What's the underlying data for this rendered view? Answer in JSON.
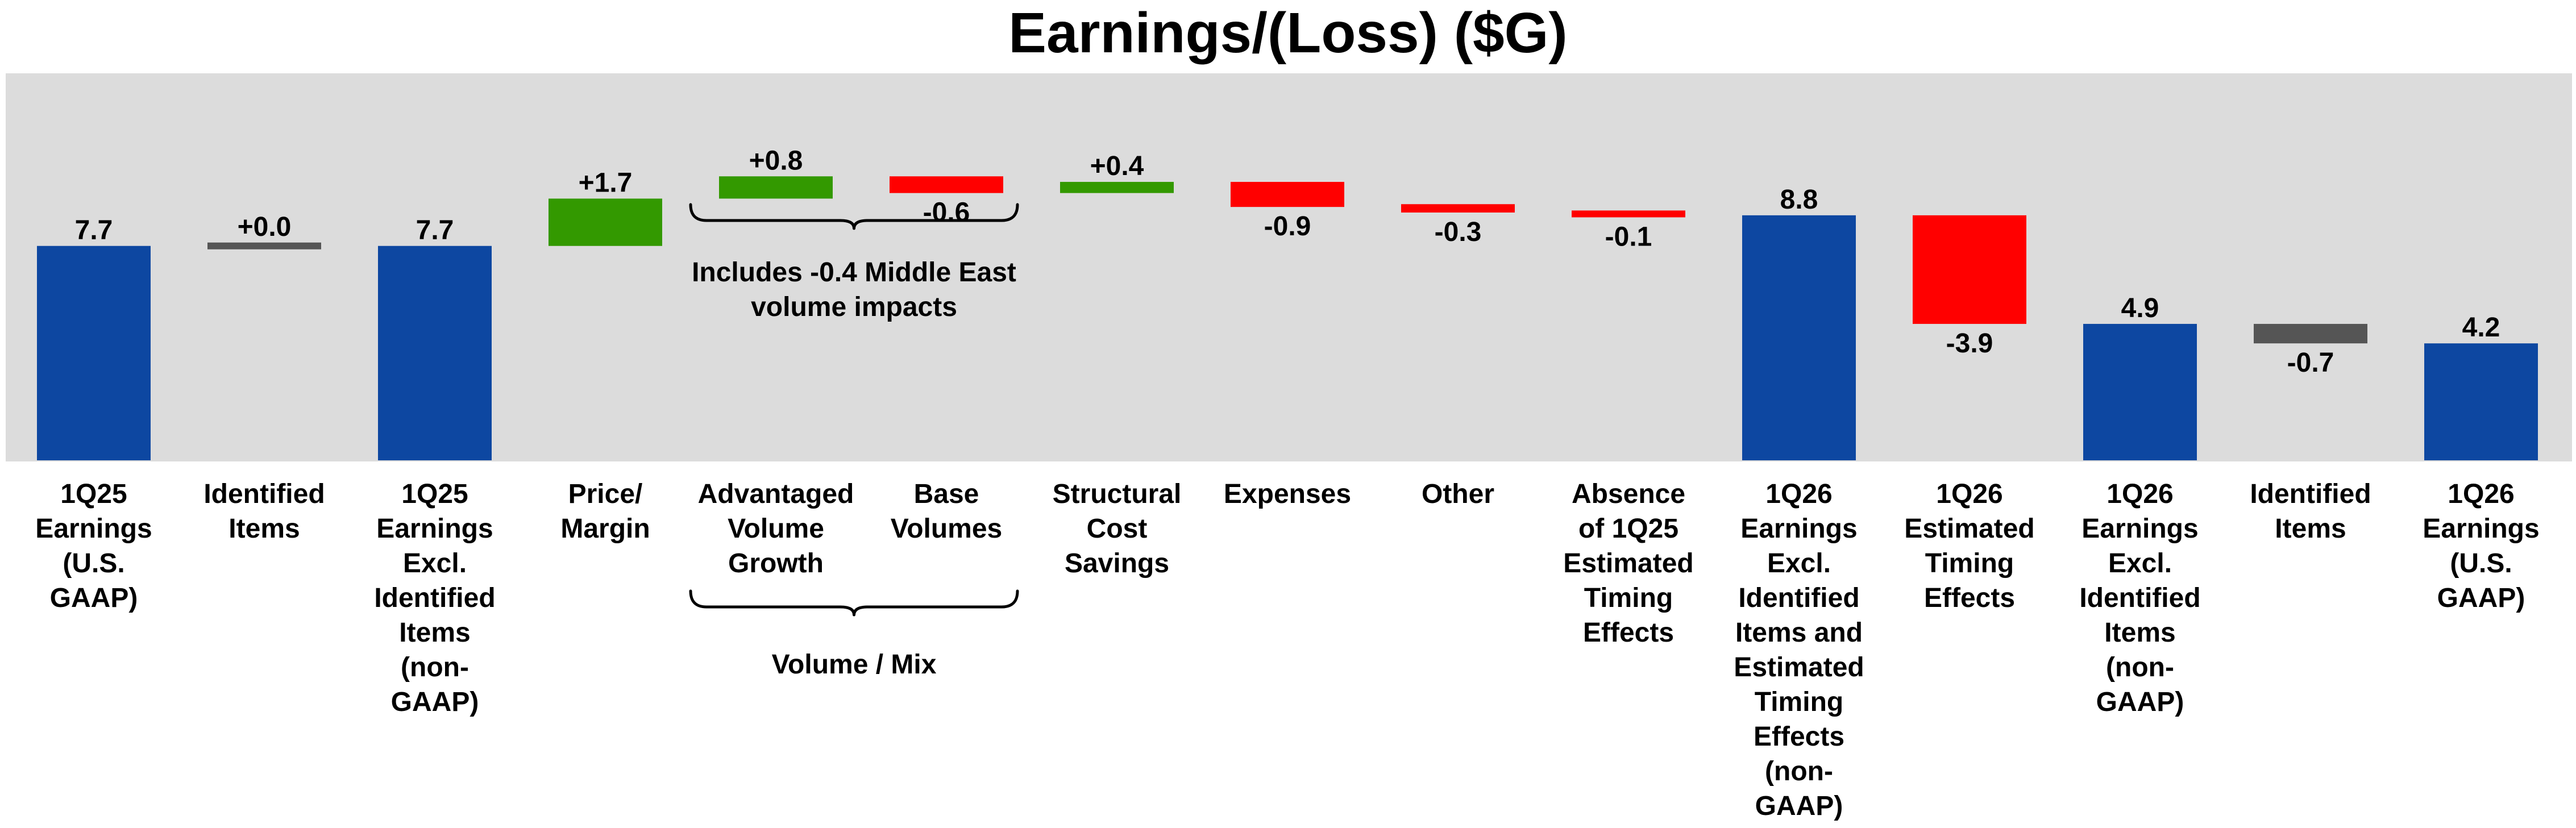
{
  "chart_data": {
    "type": "bar",
    "subtype": "waterfall",
    "title": "Earnings/(Loss) ($G)",
    "colors": {
      "total": "#0D47A1",
      "increase": "#339900",
      "decrease": "#FF0000",
      "identified": "#555555",
      "plot_background": "#DCDCDC"
    },
    "bars": [
      {
        "category": [
          "1Q25",
          "Earnings",
          "(U.S.",
          "GAAP)"
        ],
        "kind": "total",
        "start": 0,
        "end": 7.7,
        "label": "7.7"
      },
      {
        "category": [
          "Identified",
          "Items"
        ],
        "kind": "identified",
        "start": 7.7,
        "end": 7.7,
        "label": "+0.0"
      },
      {
        "category": [
          "1Q25",
          "Earnings",
          "Excl.",
          "Identified",
          "Items",
          "(non-",
          "GAAP)"
        ],
        "kind": "total",
        "start": 0,
        "end": 7.7,
        "label": "7.7"
      },
      {
        "category": [
          "Price/",
          "Margin"
        ],
        "kind": "increase",
        "start": 7.7,
        "end": 9.4,
        "label": "+1.7"
      },
      {
        "category": [
          "Advantaged",
          "Volume",
          "Growth"
        ],
        "kind": "increase",
        "start": 9.4,
        "end": 10.2,
        "label": "+0.8"
      },
      {
        "category": [
          "Base",
          "Volumes"
        ],
        "kind": "decrease",
        "start": 10.2,
        "end": 9.6,
        "label": "-0.6"
      },
      {
        "category": [
          "Structural",
          "Cost",
          "Savings"
        ],
        "kind": "increase",
        "start": 9.6,
        "end": 10.0,
        "label": "+0.4"
      },
      {
        "category": [
          "Expenses"
        ],
        "kind": "decrease",
        "start": 10.0,
        "end": 9.1,
        "label": "-0.9"
      },
      {
        "category": [
          "Other"
        ],
        "kind": "decrease",
        "start": 9.2,
        "end": 8.9,
        "label": "-0.3"
      },
      {
        "category": [
          "Absence",
          "of 1Q25",
          "Estimated",
          "Timing",
          "Effects"
        ],
        "kind": "decrease",
        "start": 8.9,
        "end": 8.8,
        "label": "-0.1"
      },
      {
        "category": [
          "1Q26",
          "Earnings",
          "Excl.",
          "Identified",
          "Items and",
          "Estimated",
          "Timing",
          "Effects",
          "(non-",
          "GAAP)"
        ],
        "kind": "total",
        "start": 0,
        "end": 8.8,
        "label": "8.8"
      },
      {
        "category": [
          "1Q26",
          "Estimated",
          "Timing",
          "Effects"
        ],
        "kind": "decrease",
        "start": 8.8,
        "end": 4.9,
        "label": "-3.9"
      },
      {
        "category": [
          "1Q26",
          "Earnings",
          "Excl.",
          "Identified",
          "Items",
          "(non-",
          "GAAP)"
        ],
        "kind": "total",
        "start": 0,
        "end": 4.9,
        "label": "4.9"
      },
      {
        "category": [
          "Identified",
          "Items"
        ],
        "kind": "identified",
        "start": 4.9,
        "end": 4.2,
        "label": "-0.7"
      },
      {
        "category": [
          "1Q26",
          "Earnings",
          "(U.S.",
          "GAAP)"
        ],
        "kind": "total",
        "start": 0,
        "end": 4.2,
        "label": "4.2"
      }
    ],
    "annotations": [
      {
        "text": [
          "Includes -0.4 Middle East",
          "volume impacts"
        ],
        "spans_bars": [
          4,
          5
        ]
      },
      {
        "text": [
          "Volume / Mix"
        ],
        "spans_bars": [
          4,
          5
        ]
      }
    ],
    "ylim": [
      0,
      13.9
    ],
    "grid": false,
    "legend": "none"
  }
}
